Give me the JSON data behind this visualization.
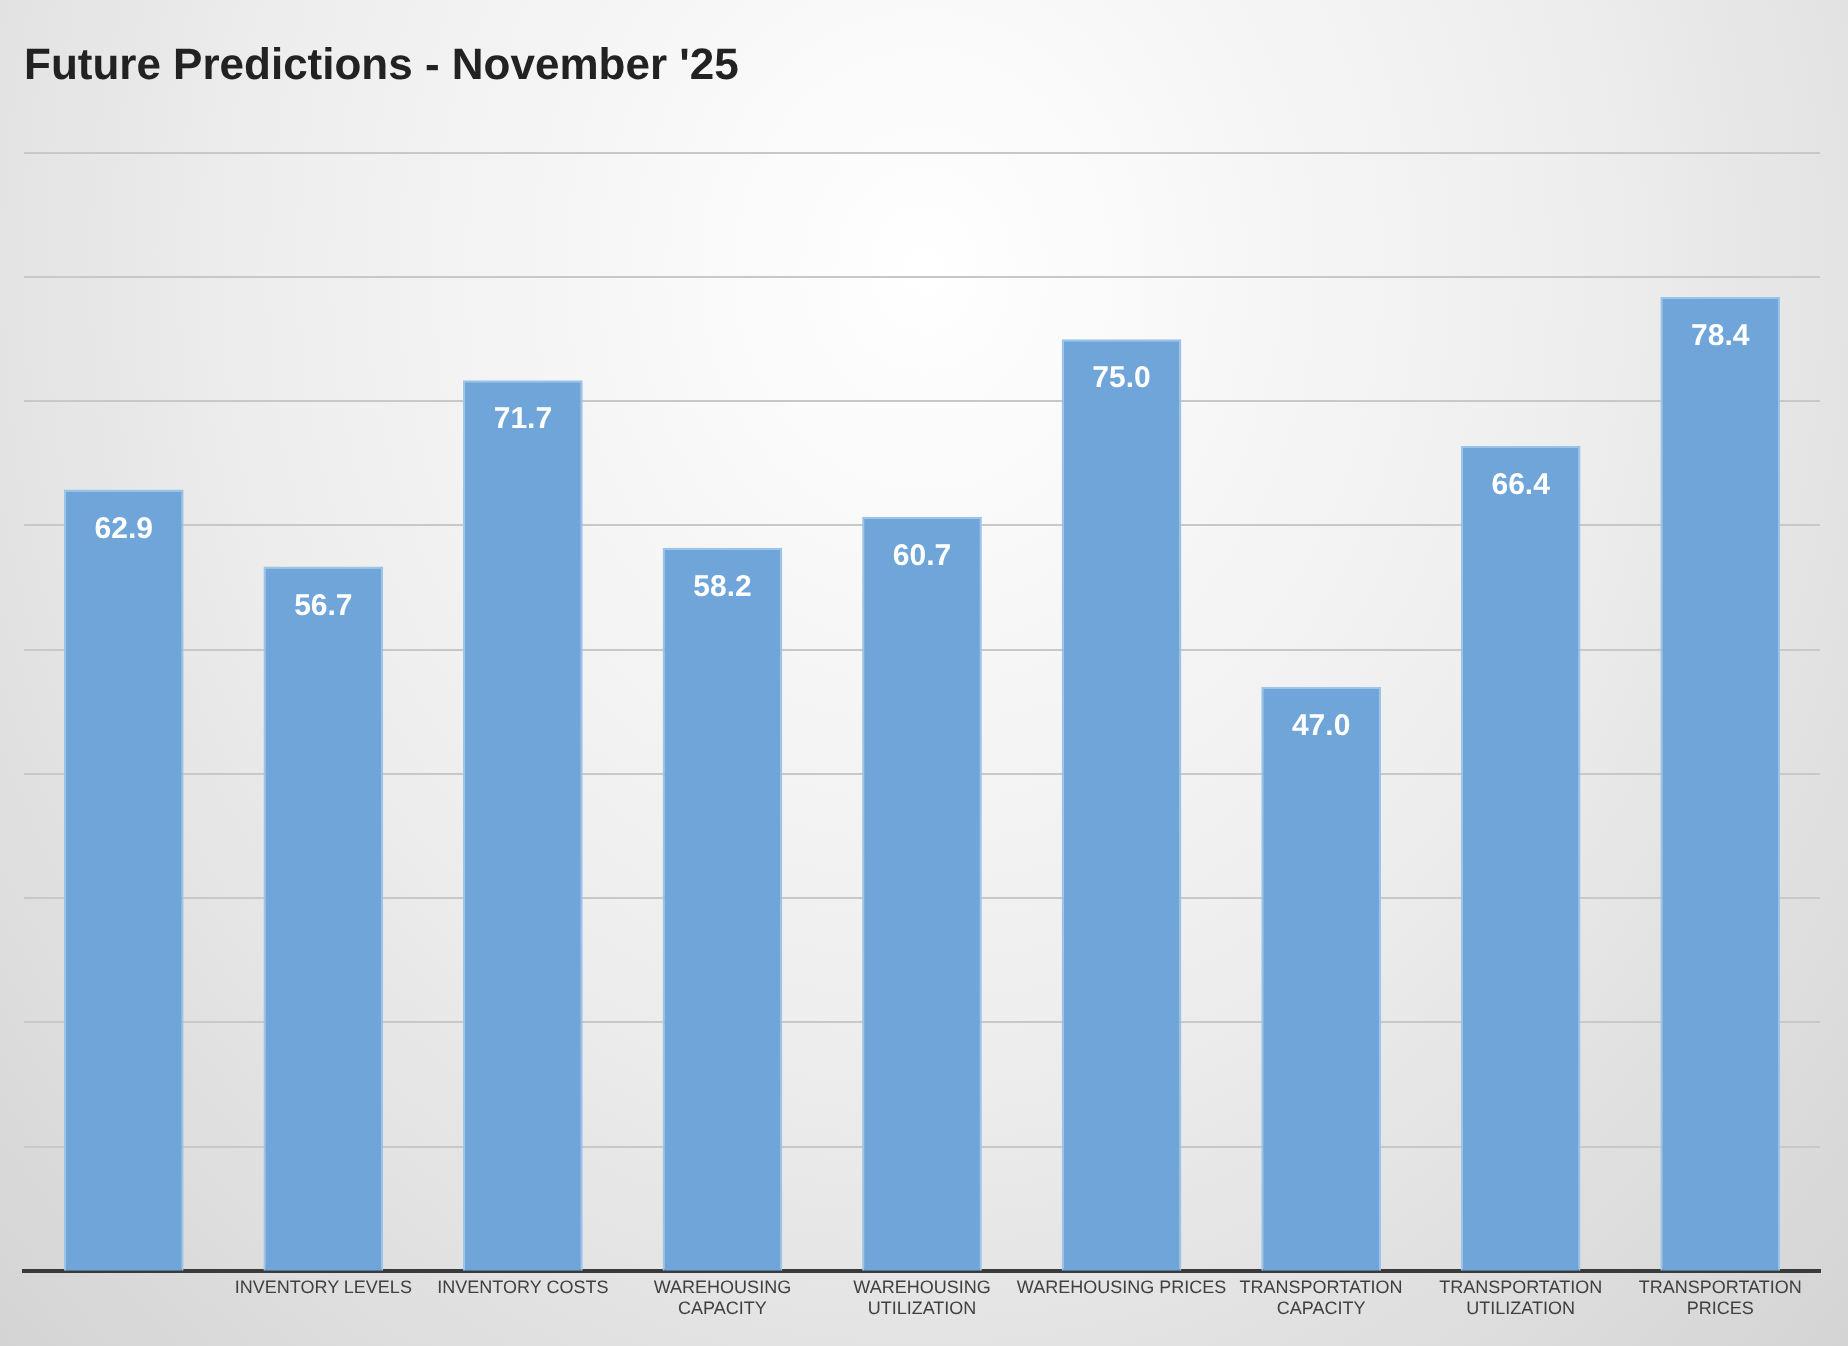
{
  "chart_data": {
    "type": "bar",
    "title": "Future Predictions - November '25",
    "categories": [
      null,
      "INVENTORY LEVELS",
      "INVENTORY COSTS",
      "WAREHOUSING CAPACITY",
      "WAREHOUSING UTILIZATION",
      "WAREHOUSING PRICES",
      "TRANSPORTATION CAPACITY",
      "TRANSPORTATION UTILIZATION",
      "TRANSPORTATION PRICES"
    ],
    "values": [
      62.9,
      56.7,
      71.7,
      58.2,
      60.7,
      75.0,
      47.0,
      66.4,
      78.4
    ],
    "value_labels": [
      "62.9",
      "56.7",
      "71.7",
      "58.2",
      "60.7",
      "75.0",
      "47.0",
      "66.4",
      "78.4"
    ],
    "color": "#6fa5d8",
    "ylim": [
      0,
      90
    ],
    "yticks": [
      {
        "value": 0,
        "label": null
      },
      {
        "value": 10,
        "label": null
      },
      {
        "value": 20,
        "label": null
      },
      {
        "value": 30,
        "label": null
      },
      {
        "value": 40,
        "label": null
      },
      {
        "value": 50,
        "label": null
      },
      {
        "value": 60,
        "label": null
      },
      {
        "value": 70,
        "label": null
      },
      {
        "value": 80,
        "label": null
      },
      {
        "value": 90,
        "label": null
      }
    ],
    "grid": "y",
    "tick_labels": "x",
    "legend": false
  }
}
